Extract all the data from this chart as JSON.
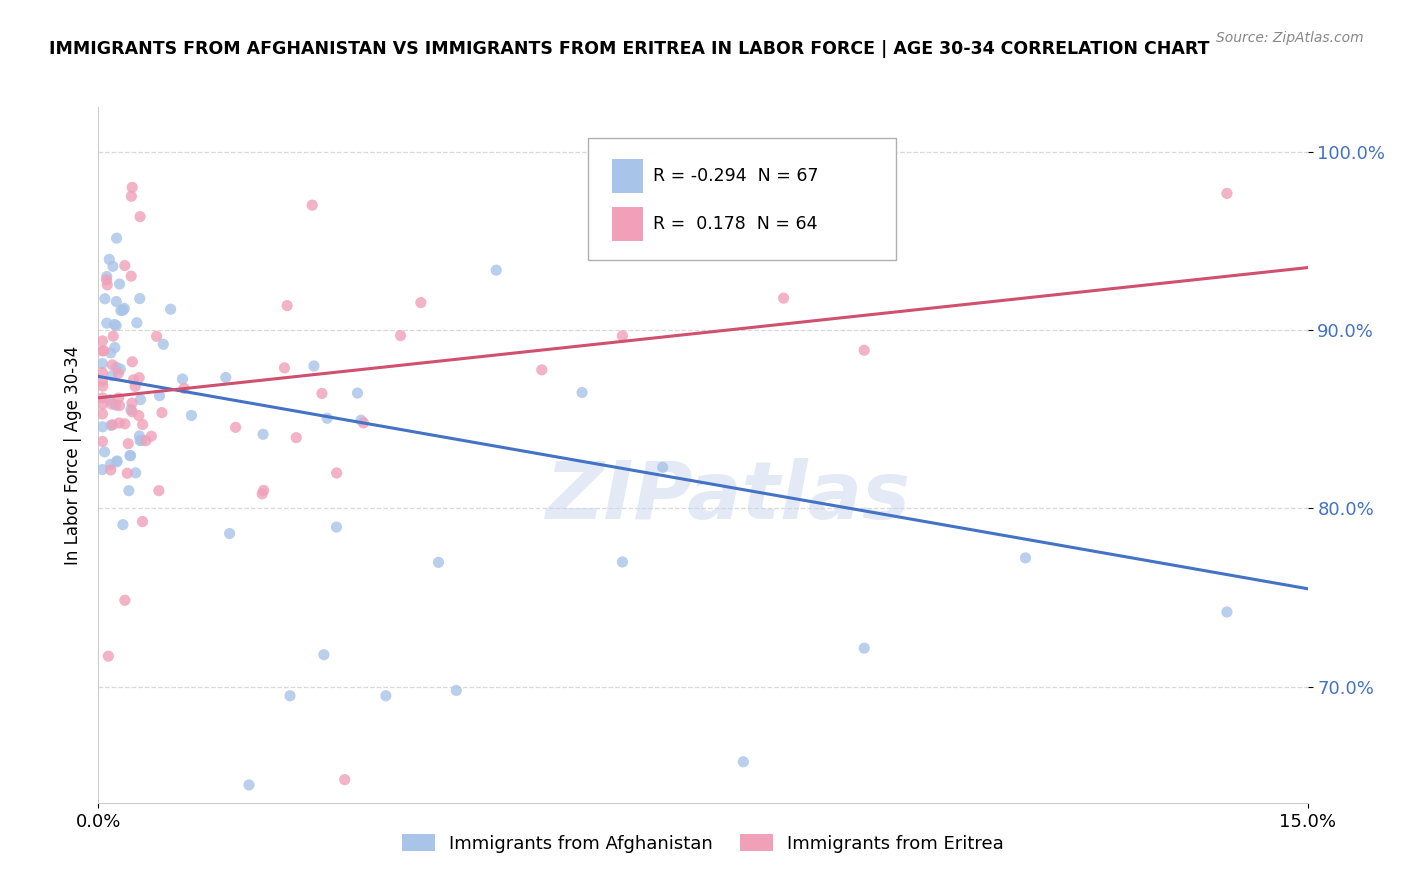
{
  "title": "IMMIGRANTS FROM AFGHANISTAN VS IMMIGRANTS FROM ERITREA IN LABOR FORCE | AGE 30-34 CORRELATION CHART",
  "source": "Source: ZipAtlas.com",
  "ylabel": "In Labor Force | Age 30-34",
  "afghanistan_R": -0.294,
  "afghanistan_N": 67,
  "eritrea_R": 0.178,
  "eritrea_N": 64,
  "afghanistan_color": "#a8c4e8",
  "eritrea_color": "#f0a0b8",
  "afghanistan_line_color": "#4472c4",
  "eritrea_line_color": "#d05070",
  "watermark": "ZIPatlas",
  "xlim": [
    0.0,
    0.15
  ],
  "ylim": [
    0.635,
    1.025
  ],
  "yticks": [
    0.7,
    0.8,
    0.9,
    1.0
  ],
  "ytick_labels": [
    "70.0%",
    "80.0%",
    "90.0%",
    "100.0%"
  ],
  "xtick_labels": [
    "0.0%",
    "15.0%"
  ],
  "afg_line_x0": 0.0,
  "afg_line_y0": 0.874,
  "afg_line_x1": 0.15,
  "afg_line_y1": 0.755,
  "eri_line_x0": 0.0,
  "eri_line_y0": 0.862,
  "eri_line_x1": 0.15,
  "eri_line_y1": 0.935,
  "legend_label_afg": "Immigrants from Afghanistan",
  "legend_label_eri": "Immigrants from Eritrea"
}
